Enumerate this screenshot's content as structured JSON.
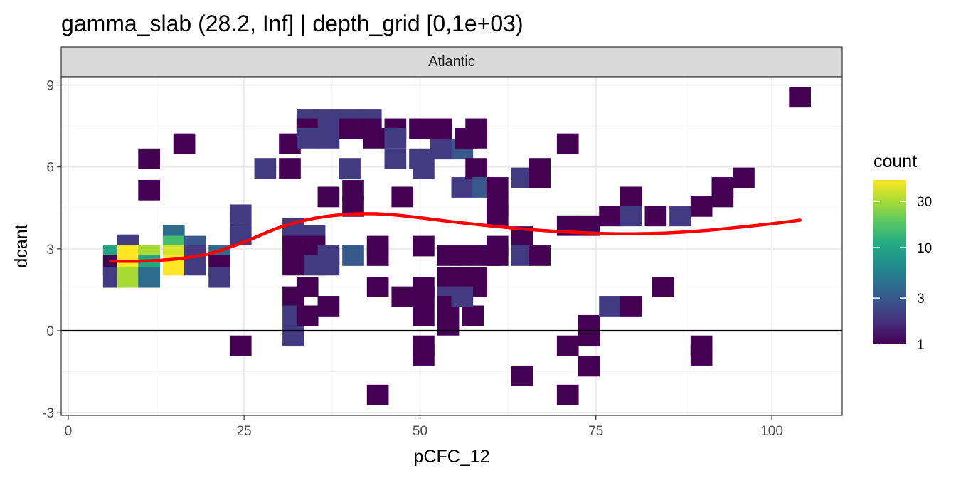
{
  "chart_data": {
    "type": "heatmap",
    "title": "gamma_slab (28.2, Inf] | depth_grid [0,1e+03)",
    "facet_label": "Atlantic",
    "xlabel": "pCFC_12",
    "ylabel": "dcant",
    "xlim": [
      -1,
      110
    ],
    "ylim": [
      -3.1,
      9.3
    ],
    "x_ticks": [
      0,
      25,
      50,
      75,
      100
    ],
    "x_tick_labels": [
      "0",
      "25",
      "50",
      "75",
      "100"
    ],
    "y_ticks": [
      -3,
      0,
      3,
      6,
      9
    ],
    "y_tick_labels": [
      "-3",
      "0",
      "3",
      "6",
      "9"
    ],
    "grid": true,
    "bin_width": {
      "x": 3.1,
      "y": 0.75
    },
    "hline_y": 0,
    "smooth_line": {
      "color": "#ff0000",
      "x": [
        6,
        10,
        15,
        20,
        25,
        30,
        35,
        40,
        45,
        50,
        55,
        60,
        65,
        70,
        75,
        80,
        85,
        90,
        95,
        100,
        104
      ],
      "y": [
        2.55,
        2.55,
        2.62,
        2.82,
        3.25,
        3.78,
        4.12,
        4.27,
        4.27,
        4.14,
        3.98,
        3.84,
        3.72,
        3.63,
        3.57,
        3.55,
        3.58,
        3.66,
        3.78,
        3.92,
        4.05
      ]
    },
    "legend": {
      "title": "count",
      "scale": "log",
      "placement": "right",
      "breaks": [
        1,
        3,
        10,
        30
      ],
      "break_labels": [
        "1",
        "3",
        "10",
        "30"
      ],
      "max": 50,
      "colors": [
        "#440154",
        "#472c7a",
        "#3b518b",
        "#2c718e",
        "#21908d",
        "#27ad81",
        "#5cc863",
        "#aadc32",
        "#fde725"
      ]
    },
    "cells": [
      {
        "x": 6.5,
        "y": 2.75,
        "count": 10
      },
      {
        "x": 6.5,
        "y": 2.4,
        "count": 1
      },
      {
        "x": 6.5,
        "y": 1.95,
        "count": 2
      },
      {
        "x": 8.5,
        "y": 3.15,
        "count": 2
      },
      {
        "x": 8.5,
        "y": 2.75,
        "count": 50
      },
      {
        "x": 8.5,
        "y": 2.4,
        "count": 50
      },
      {
        "x": 8.5,
        "y": 1.95,
        "count": 30
      },
      {
        "x": 11.5,
        "y": 2.75,
        "count": 30
      },
      {
        "x": 11.5,
        "y": 2.4,
        "count": 10
      },
      {
        "x": 11.5,
        "y": 1.95,
        "count": 4
      },
      {
        "x": 15,
        "y": 3.5,
        "count": 4
      },
      {
        "x": 15,
        "y": 3.1,
        "count": 15
      },
      {
        "x": 15,
        "y": 2.75,
        "count": 40
      },
      {
        "x": 15,
        "y": 2.4,
        "count": 50
      },
      {
        "x": 18,
        "y": 3.1,
        "count": 3
      },
      {
        "x": 18,
        "y": 2.75,
        "count": 2
      },
      {
        "x": 18,
        "y": 2.4,
        "count": 2
      },
      {
        "x": 21.5,
        "y": 2.75,
        "count": 4
      },
      {
        "x": 21.5,
        "y": 2.4,
        "count": 1
      },
      {
        "x": 21.5,
        "y": 1.95,
        "count": 2
      },
      {
        "x": 16.5,
        "y": 6.85,
        "count": 1
      },
      {
        "x": 11.5,
        "y": 6.3,
        "count": 1
      },
      {
        "x": 11.5,
        "y": 5.15,
        "count": 1
      },
      {
        "x": 24.5,
        "y": 4.25,
        "count": 2
      },
      {
        "x": 24.5,
        "y": 3.5,
        "count": 2
      },
      {
        "x": 24.5,
        "y": -0.55,
        "count": 1
      },
      {
        "x": 28,
        "y": 5.95,
        "count": 2
      },
      {
        "x": 31.5,
        "y": 5.95,
        "count": 1
      },
      {
        "x": 31.5,
        "y": 6.85,
        "count": 1
      },
      {
        "x": 32,
        "y": 3.75,
        "count": 2
      },
      {
        "x": 32,
        "y": 3.5,
        "count": 2
      },
      {
        "x": 32,
        "y": 3.1,
        "count": 1
      },
      {
        "x": 32,
        "y": 2.4,
        "count": 1
      },
      {
        "x": 32,
        "y": 1.25,
        "count": 1
      },
      {
        "x": 32,
        "y": 0.55,
        "count": 2
      },
      {
        "x": 32,
        "y": -0.2,
        "count": 2
      },
      {
        "x": 35,
        "y": 3.5,
        "count": 2
      },
      {
        "x": 35,
        "y": 3.1,
        "count": 1
      },
      {
        "x": 35,
        "y": 2.4,
        "count": 2
      },
      {
        "x": 34,
        "y": 7.75,
        "count": 2
      },
      {
        "x": 34,
        "y": 7.4,
        "count": 1
      },
      {
        "x": 34,
        "y": 7.05,
        "count": 2
      },
      {
        "x": 34,
        "y": 1.6,
        "count": 1
      },
      {
        "x": 34,
        "y": 0.55,
        "count": 1
      },
      {
        "x": 37,
        "y": 7.75,
        "count": 2
      },
      {
        "x": 37,
        "y": 7.05,
        "count": 2
      },
      {
        "x": 37,
        "y": 4.9,
        "count": 1
      },
      {
        "x": 37,
        "y": 2.75,
        "count": 2
      },
      {
        "x": 37,
        "y": 2.4,
        "count": 2
      },
      {
        "x": 37,
        "y": 0.9,
        "count": 1
      },
      {
        "x": 40,
        "y": 7.75,
        "count": 2
      },
      {
        "x": 40,
        "y": 7.4,
        "count": 1
      },
      {
        "x": 40,
        "y": 5.95,
        "count": 2
      },
      {
        "x": 40.5,
        "y": 5.15,
        "count": 1
      },
      {
        "x": 40.5,
        "y": 4.55,
        "count": 1
      },
      {
        "x": 40.5,
        "y": 2.75,
        "count": 3
      },
      {
        "x": 43,
        "y": 7.75,
        "count": 2
      },
      {
        "x": 43,
        "y": 7.4,
        "count": 1
      },
      {
        "x": 43.5,
        "y": 7.05,
        "count": 1
      },
      {
        "x": 44,
        "y": 3.1,
        "count": 1
      },
      {
        "x": 44,
        "y": 2.75,
        "count": 1
      },
      {
        "x": 44,
        "y": 1.6,
        "count": 1
      },
      {
        "x": 44,
        "y": -2.35,
        "count": 1
      },
      {
        "x": 46.5,
        "y": 7.4,
        "count": 1
      },
      {
        "x": 46.5,
        "y": 7.05,
        "count": 2
      },
      {
        "x": 46.5,
        "y": 6.3,
        "count": 2
      },
      {
        "x": 47.5,
        "y": 4.9,
        "count": 1
      },
      {
        "x": 47.5,
        "y": 1.25,
        "count": 1
      },
      {
        "x": 50,
        "y": 7.4,
        "count": 1
      },
      {
        "x": 50,
        "y": 6.3,
        "count": 2
      },
      {
        "x": 50.5,
        "y": 5.95,
        "count": 2
      },
      {
        "x": 50.5,
        "y": 3.1,
        "count": 1
      },
      {
        "x": 50.5,
        "y": 1.6,
        "count": 1
      },
      {
        "x": 50.5,
        "y": 1.25,
        "count": 1
      },
      {
        "x": 50.5,
        "y": 0.55,
        "count": 1
      },
      {
        "x": 50.5,
        "y": -0.55,
        "count": 1
      },
      {
        "x": 50.5,
        "y": -0.9,
        "count": 1
      },
      {
        "x": 53,
        "y": 7.4,
        "count": 1
      },
      {
        "x": 53,
        "y": 7.05,
        "count": 1
      },
      {
        "x": 53,
        "y": 6.65,
        "count": 2
      },
      {
        "x": 54,
        "y": 2.75,
        "count": 1
      },
      {
        "x": 54,
        "y": 1.95,
        "count": 1
      },
      {
        "x": 54,
        "y": 1.25,
        "count": 2
      },
      {
        "x": 54,
        "y": 0.9,
        "count": 1
      },
      {
        "x": 54,
        "y": 0.2,
        "count": 1
      },
      {
        "x": 56,
        "y": 6.65,
        "count": 3
      },
      {
        "x": 56,
        "y": 5.25,
        "count": 2
      },
      {
        "x": 56,
        "y": 1.95,
        "count": 1
      },
      {
        "x": 56.5,
        "y": 7.05,
        "count": 1
      },
      {
        "x": 57,
        "y": 2.75,
        "count": 1
      },
      {
        "x": 57.5,
        "y": 0.55,
        "count": 1
      },
      {
        "x": 58,
        "y": 7.4,
        "count": 1
      },
      {
        "x": 58,
        "y": 7.05,
        "count": 1
      },
      {
        "x": 58,
        "y": 5.95,
        "count": 1
      },
      {
        "x": 58,
        "y": 1.95,
        "count": 1
      },
      {
        "x": 58,
        "y": 1.6,
        "count": 1
      },
      {
        "x": 59,
        "y": 5.25,
        "count": 3
      },
      {
        "x": 60,
        "y": 2.75,
        "count": 1
      },
      {
        "x": 61,
        "y": 5.25,
        "count": 1
      },
      {
        "x": 61,
        "y": 4.55,
        "count": 1
      },
      {
        "x": 61,
        "y": 4.2,
        "count": 1
      },
      {
        "x": 61,
        "y": 3.1,
        "count": 1
      },
      {
        "x": 61,
        "y": 2.75,
        "count": 1
      },
      {
        "x": 64.5,
        "y": 5.6,
        "count": 2
      },
      {
        "x": 64.5,
        "y": 3.45,
        "count": 1
      },
      {
        "x": 64.5,
        "y": 2.75,
        "count": 2
      },
      {
        "x": 64.5,
        "y": -1.65,
        "count": 1
      },
      {
        "x": 67,
        "y": 5.95,
        "count": 1
      },
      {
        "x": 67,
        "y": 5.6,
        "count": 1
      },
      {
        "x": 67,
        "y": 2.75,
        "count": 1
      },
      {
        "x": 71,
        "y": 6.85,
        "count": 1
      },
      {
        "x": 71,
        "y": 3.85,
        "count": 1
      },
      {
        "x": 71,
        "y": -0.55,
        "count": 1
      },
      {
        "x": 71,
        "y": -2.35,
        "count": 1
      },
      {
        "x": 74,
        "y": 3.85,
        "count": 1
      },
      {
        "x": 74,
        "y": 0.2,
        "count": 1
      },
      {
        "x": 74,
        "y": -0.2,
        "count": 1
      },
      {
        "x": 74,
        "y": -1.3,
        "count": 1
      },
      {
        "x": 77,
        "y": 4.2,
        "count": 1
      },
      {
        "x": 77,
        "y": 0.9,
        "count": 2
      },
      {
        "x": 80,
        "y": 4.9,
        "count": 1
      },
      {
        "x": 80,
        "y": 4.2,
        "count": 2
      },
      {
        "x": 80,
        "y": 0.9,
        "count": 1
      },
      {
        "x": 83.5,
        "y": 4.2,
        "count": 1
      },
      {
        "x": 84.5,
        "y": 1.6,
        "count": 1
      },
      {
        "x": 87,
        "y": 4.2,
        "count": 2
      },
      {
        "x": 90,
        "y": 4.55,
        "count": 1
      },
      {
        "x": 90,
        "y": -0.55,
        "count": 1
      },
      {
        "x": 90,
        "y": -0.9,
        "count": 1
      },
      {
        "x": 93,
        "y": 5.25,
        "count": 1
      },
      {
        "x": 93,
        "y": 4.9,
        "count": 1
      },
      {
        "x": 96,
        "y": 5.6,
        "count": 1
      },
      {
        "x": 104,
        "y": 8.55,
        "count": 1
      },
      {
        "x": 56,
        "y": 1.25,
        "count": 2
      }
    ]
  }
}
